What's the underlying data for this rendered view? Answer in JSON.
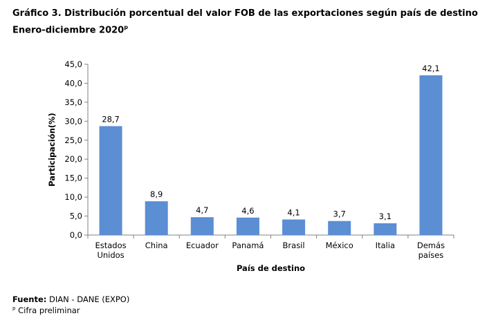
{
  "header": {
    "title_line1": "Gráfico 3. Distribución porcentual del valor FOB de las exportaciones según país de destino",
    "title_line2": "Enero-diciembre 2020",
    "title_sup": "p"
  },
  "footer": {
    "source_label": "Fuente:",
    "source_value": "DIAN - DANE (EXPO)",
    "note_sup": "p",
    "note_text": "Cifra preliminar"
  },
  "chart_data": {
    "type": "bar",
    "categories": [
      [
        "Estados",
        "Unidos"
      ],
      [
        "China"
      ],
      [
        "Ecuador"
      ],
      [
        "Panamá"
      ],
      [
        "Brasil"
      ],
      [
        "México"
      ],
      [
        "Italia"
      ],
      [
        "Demás",
        "países"
      ]
    ],
    "values": [
      28.7,
      8.9,
      4.7,
      4.6,
      4.1,
      3.7,
      3.1,
      42.1
    ],
    "data_labels": [
      "28,7",
      "8,9",
      "4,7",
      "4,6",
      "4,1",
      "3,7",
      "3,1",
      "42,1"
    ],
    "xlabel": "País de destino",
    "ylabel": "Participación(%)",
    "ylim": [
      0,
      45
    ],
    "yticks": [
      "0,0",
      "5,0",
      "10,0",
      "15,0",
      "20,0",
      "25,0",
      "30,0",
      "35,0",
      "40,0",
      "45,0"
    ],
    "bar_color": "#5b8ed3",
    "grid": false
  }
}
